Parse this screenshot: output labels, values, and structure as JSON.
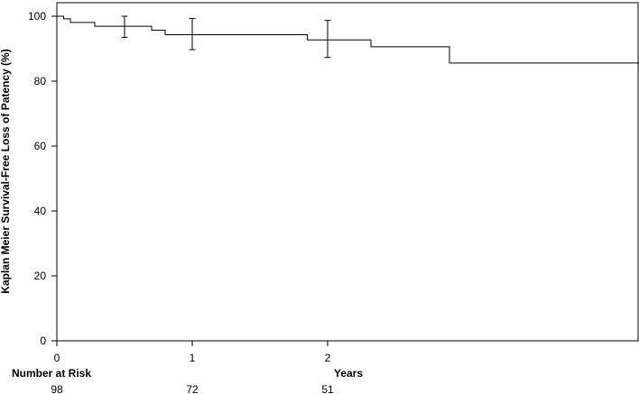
{
  "chart_data": {
    "type": "line",
    "subtype": "kaplan-meier-step",
    "title": "",
    "xlabel": "Years",
    "ylabel": "Kaplan Meier Survival-Free Loss of Patency (%)",
    "xlim": [
      0,
      4.3
    ],
    "ylim": [
      0,
      100
    ],
    "x_ticks": [
      0,
      1,
      2
    ],
    "x_tick_labels": [
      "0",
      "1",
      "2"
    ],
    "y_ticks": [
      0,
      20,
      40,
      60,
      80,
      100
    ],
    "y_tick_labels": [
      "0",
      "20",
      "40",
      "60",
      "80",
      "100"
    ],
    "grid": false,
    "series": [
      {
        "steps": [
          {
            "x": 0,
            "y": 100
          },
          {
            "x": 0.05,
            "y": 99.2
          },
          {
            "x": 0.1,
            "y": 98.1
          },
          {
            "x": 0.28,
            "y": 96.9
          },
          {
            "x": 0.7,
            "y": 95.7
          },
          {
            "x": 0.8,
            "y": 94.3
          },
          {
            "x": 1.85,
            "y": 92.7
          },
          {
            "x": 2.32,
            "y": 90.6
          },
          {
            "x": 2.9,
            "y": 85.6
          },
          {
            "x": 4.3,
            "y": 85.6
          }
        ],
        "error_bars": [
          {
            "x": 0.5,
            "y": 96.9,
            "low": 93.5,
            "high": 100
          },
          {
            "x": 1.0,
            "y": 94.3,
            "low": 89.7,
            "high": 99.3
          },
          {
            "x": 2.0,
            "y": 92.7,
            "low": 87.3,
            "high": 98.7
          }
        ]
      }
    ],
    "risk_table": {
      "label": "Number at Risk",
      "entries": [
        {
          "x": 0,
          "value": "98"
        },
        {
          "x": 1,
          "value": "72"
        },
        {
          "x": 2,
          "value": "51"
        }
      ]
    }
  }
}
